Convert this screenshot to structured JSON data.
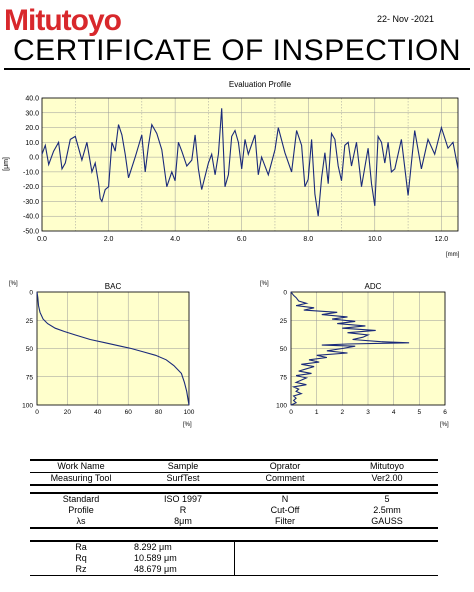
{
  "header": {
    "brand": "Mitutoyo",
    "date": "22- Nov -2021",
    "title": "CERTIFICATE OF INSPECTION"
  },
  "colors": {
    "brand": "#d8282c",
    "plot_bg": "#ffffcc",
    "series": "#1a2a7a",
    "grid": "#999999"
  },
  "chart_data": [
    {
      "type": "line",
      "title": "Evaluation Profile",
      "ylabel": "[μm]",
      "xlabel": "[mm]",
      "xlim": [
        0,
        12.5
      ],
      "ylim": [
        -50,
        40
      ],
      "xticks": [
        "0.0",
        "2.0",
        "4.0",
        "6.0",
        "8.0",
        "10.0",
        "12.0"
      ],
      "yticks": [
        "40.0",
        "30.0",
        "20.0",
        "10.0",
        "0.0",
        "-10.0",
        "-20.0",
        "-30.0",
        "-40.0",
        "-50.0"
      ],
      "grid": true,
      "x": [
        0,
        0.1,
        0.2,
        0.35,
        0.5,
        0.6,
        0.7,
        0.85,
        1.0,
        1.1,
        1.2,
        1.35,
        1.5,
        1.6,
        1.7,
        1.75,
        1.8,
        1.9,
        2.0,
        2.1,
        2.2,
        2.3,
        2.4,
        2.5,
        2.6,
        2.8,
        3.0,
        3.1,
        3.2,
        3.3,
        3.45,
        3.6,
        3.75,
        3.9,
        4.0,
        4.1,
        4.2,
        4.35,
        4.5,
        4.6,
        4.7,
        4.8,
        5.0,
        5.1,
        5.2,
        5.3,
        5.4,
        5.5,
        5.6,
        5.7,
        5.8,
        5.9,
        6.0,
        6.1,
        6.2,
        6.4,
        6.5,
        6.6,
        6.8,
        7.0,
        7.1,
        7.3,
        7.5,
        7.65,
        7.8,
        7.9,
        8.0,
        8.1,
        8.2,
        8.3,
        8.4,
        8.5,
        8.6,
        8.7,
        8.8,
        8.9,
        9.0,
        9.1,
        9.2,
        9.3,
        9.45,
        9.6,
        9.8,
        9.9,
        10.0,
        10.1,
        10.2,
        10.3,
        10.4,
        10.5,
        10.6,
        10.8,
        11.0,
        11.2,
        11.4,
        11.6,
        11.8,
        12.0,
        12.2,
        12.35,
        12.5
      ],
      "series": [
        {
          "values": [
            2,
            8,
            -5,
            4,
            10,
            -8,
            -4,
            12,
            14,
            6,
            -2,
            10,
            -10,
            -4,
            -18,
            -28,
            -30,
            -22,
            -20,
            10,
            4,
            22,
            15,
            2,
            -14,
            0,
            15,
            -10,
            8,
            22,
            16,
            5,
            -20,
            -10,
            -16,
            10,
            4,
            -6,
            -2,
            15,
            -8,
            -22,
            -4,
            2,
            -12,
            2,
            33,
            -20,
            -12,
            14,
            18,
            10,
            -8,
            12,
            2,
            15,
            -12,
            0,
            -12,
            5,
            20,
            3,
            -10,
            18,
            8,
            -20,
            -15,
            12,
            -25,
            -40,
            -14,
            3,
            -18,
            16,
            12,
            -6,
            -16,
            8,
            10,
            -6,
            10,
            -20,
            6,
            -18,
            -33,
            14,
            10,
            -4,
            10,
            -10,
            -8,
            12,
            -26,
            18,
            -8,
            12,
            2,
            20,
            6,
            10,
            -8
          ]
        }
      ]
    },
    {
      "type": "line",
      "title": "BAC",
      "unit_y": "[%]",
      "unit_x": "[%]",
      "xlim": [
        0,
        100
      ],
      "ylim": [
        0,
        100
      ],
      "xticks": [
        "0",
        "20",
        "40",
        "60",
        "80",
        "100"
      ],
      "yticks": [
        "0",
        "25",
        "50",
        "75",
        "100"
      ],
      "x": [
        0,
        0.5,
        1,
        2,
        4,
        7,
        12,
        18,
        25,
        35,
        45,
        55,
        62,
        70,
        78,
        85,
        90,
        95,
        97,
        98.5,
        99.5,
        100
      ],
      "series": [
        {
          "values": [
            0,
            5,
            12,
            18,
            24,
            28,
            32,
            35,
            38,
            42,
            45,
            48,
            50,
            53,
            56,
            60,
            65,
            72,
            80,
            88,
            96,
            100
          ]
        }
      ]
    },
    {
      "type": "line",
      "title": "ADC",
      "unit_y": "[%]",
      "unit_x": "[%]",
      "xlim": [
        0,
        6
      ],
      "ylim": [
        0,
        100
      ],
      "xticks": [
        "0",
        "1",
        "2",
        "3",
        "4",
        "5",
        "6"
      ],
      "yticks": [
        "0",
        "25",
        "50",
        "75",
        "100"
      ],
      "y": [
        0,
        3,
        5,
        8,
        10,
        12,
        14,
        16,
        18,
        20,
        22,
        24,
        26,
        28,
        30,
        32,
        34,
        36,
        38,
        40,
        42,
        44,
        45,
        46,
        47,
        48,
        50,
        52,
        54,
        56,
        58,
        60,
        62,
        64,
        66,
        68,
        70,
        72,
        74,
        76,
        78,
        80,
        82,
        84,
        86,
        88,
        90,
        92,
        94,
        96,
        98,
        100
      ],
      "series": [
        {
          "values": [
            0,
            0.1,
            0.2,
            0.3,
            0.6,
            0.2,
            0.9,
            0.5,
            1.8,
            1.2,
            2.2,
            1.6,
            2.5,
            1.8,
            2.9,
            2.0,
            3.3,
            2.2,
            3.0,
            2.8,
            2.4,
            3.5,
            4.6,
            2.2,
            1.2,
            2.5,
            2.0,
            1.4,
            2.2,
            1.0,
            1.4,
            0.7,
            1.1,
            0.4,
            0.9,
            0.6,
            0.3,
            0.8,
            0.2,
            0.6,
            0.4,
            0.2,
            0.6,
            0.1,
            0.3,
            0.2,
            0.4,
            0.1,
            0.2,
            0.1,
            0.2,
            0
          ]
        }
      ]
    }
  ],
  "info1": {
    "rows": [
      [
        "Work Name",
        "Sample",
        "Oprator",
        "Mitutoyo"
      ],
      [
        "Measuring Tool",
        "SurfTest",
        "Comment",
        "Ver2.00"
      ]
    ]
  },
  "info2": {
    "rows": [
      [
        "Standard",
        "ISO 1997",
        "N",
        "5"
      ],
      [
        "Profile",
        "R",
        "Cut-Off",
        "2.5mm"
      ],
      [
        "λs",
        "8μm",
        "Filter",
        "GAUSS"
      ]
    ]
  },
  "results": {
    "rows": [
      [
        "Ra",
        "8.292  μm"
      ],
      [
        "Rq",
        "10.589 μm"
      ],
      [
        "Rz",
        "48.679 μm"
      ]
    ]
  }
}
